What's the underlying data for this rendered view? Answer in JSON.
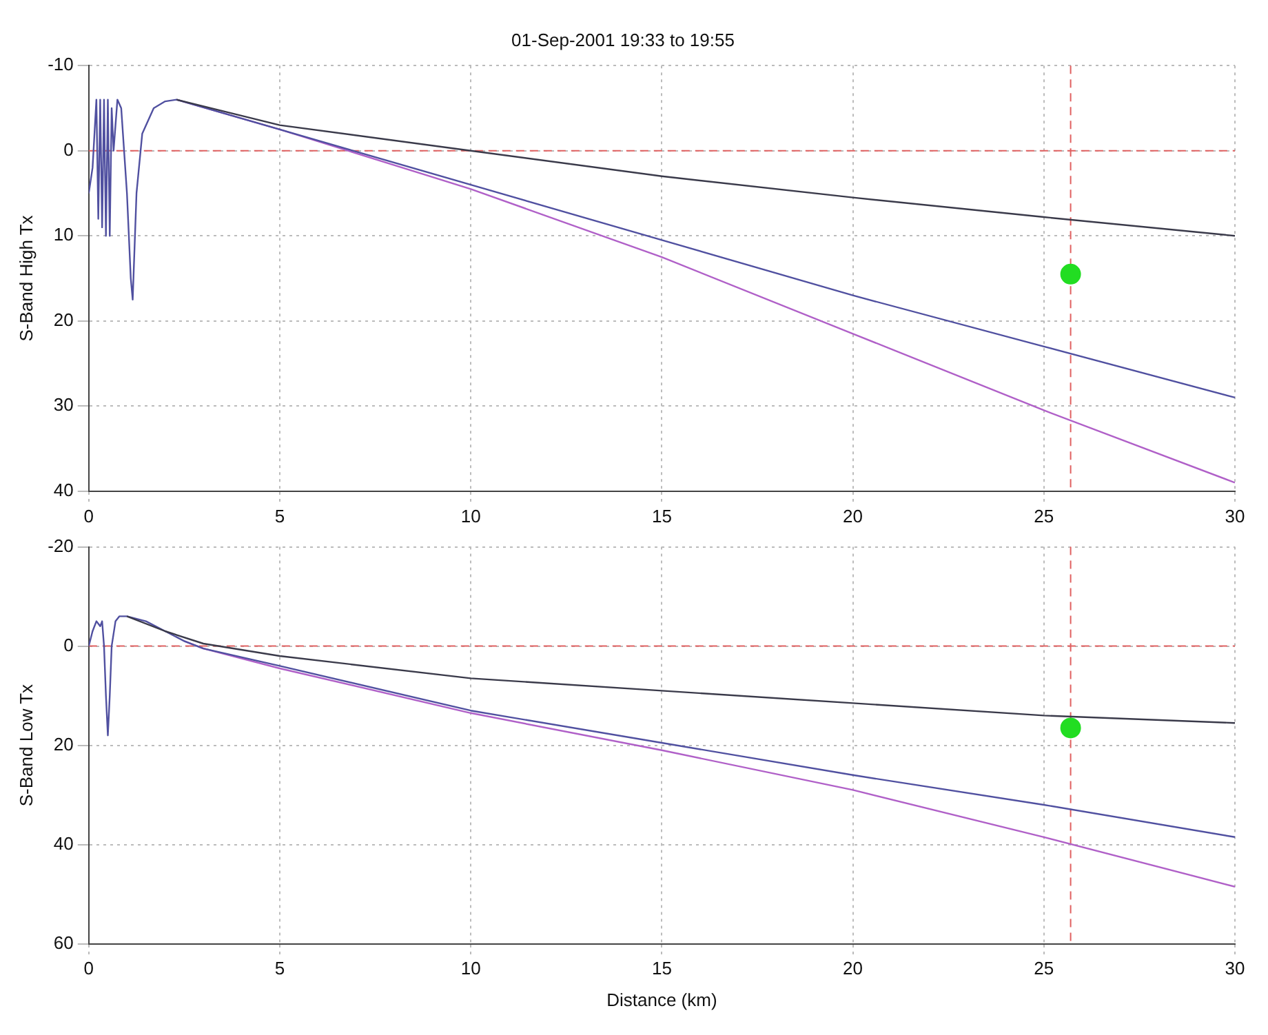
{
  "chart_data": [
    {
      "type": "line",
      "title": "01-Sep-2001 19:33 to 19:55",
      "ylabel": "S-Band High Tx",
      "xlim": [
        0,
        30
      ],
      "xticks": [
        0,
        5,
        10,
        15,
        20,
        25,
        30
      ],
      "ylim": [
        40,
        -10
      ],
      "yticks": [
        -10,
        0,
        10,
        20,
        30,
        40
      ],
      "grid": true,
      "legend": false,
      "marker": "none",
      "line_style": "solid",
      "ref_lines": [
        {
          "axis": "y",
          "value": 0,
          "color": "#e06060",
          "line_style": "dashed"
        },
        {
          "axis": "x",
          "value": 25.7,
          "color": "#e06060",
          "line_style": "dashed"
        }
      ],
      "series": [
        {
          "color": "#3a3a4a",
          "x": [
            2.3,
            5,
            10,
            15,
            20,
            25,
            30
          ],
          "values": [
            -6,
            -3,
            0,
            3,
            5.5,
            7.8,
            10
          ]
        },
        {
          "color": "#5050a0",
          "x": [
            0,
            0.1,
            0.2,
            0.25,
            0.3,
            0.35,
            0.4,
            0.45,
            0.5,
            0.55,
            0.6,
            0.65,
            0.75,
            0.85,
            1.0,
            1.1,
            1.15,
            1.25,
            1.4,
            1.7,
            2.0,
            2.3,
            5,
            10,
            15,
            20,
            25,
            30
          ],
          "values": [
            5,
            2,
            -6,
            8,
            -6,
            9,
            -6,
            10,
            -6,
            10,
            -5,
            0,
            -6,
            -5,
            5,
            15,
            17.5,
            5,
            -2,
            -5,
            -5.8,
            -6,
            -2.5,
            4,
            10.5,
            17,
            23,
            29
          ]
        },
        {
          "color": "#b060c8",
          "x": [
            2.3,
            5,
            10,
            15,
            20,
            25,
            30
          ],
          "values": [
            -6,
            -2.5,
            4.5,
            12.5,
            21.5,
            30.5,
            39
          ]
        },
        {
          "type": "scatter",
          "marker": "circle",
          "color": "#22dd22",
          "x": [
            25.7
          ],
          "values": [
            14.5
          ]
        }
      ]
    },
    {
      "type": "line",
      "ylabel": "S-Band Low Tx",
      "xlabel": "Distance (km)",
      "xlim": [
        0,
        30
      ],
      "xticks": [
        0,
        5,
        10,
        15,
        20,
        25,
        30
      ],
      "ylim": [
        60,
        -20
      ],
      "yticks": [
        -20,
        0,
        20,
        40,
        60
      ],
      "grid": true,
      "legend": false,
      "marker": "none",
      "line_style": "solid",
      "ref_lines": [
        {
          "axis": "y",
          "value": 0,
          "color": "#e06060",
          "line_style": "dashed"
        },
        {
          "axis": "x",
          "value": 25.7,
          "color": "#e06060",
          "line_style": "dashed"
        }
      ],
      "series": [
        {
          "color": "#3a3a4a",
          "x": [
            1,
            2,
            3,
            5,
            10,
            15,
            20,
            25,
            30
          ],
          "values": [
            -6,
            -3,
            -0.5,
            2,
            6.5,
            9,
            11.5,
            14,
            15.5
          ]
        },
        {
          "color": "#5050a0",
          "x": [
            0,
            0.1,
            0.2,
            0.3,
            0.35,
            0.4,
            0.45,
            0.5,
            0.55,
            0.6,
            0.7,
            0.8,
            1.0,
            1.5,
            2.0,
            2.5,
            3,
            5,
            10,
            15,
            20,
            25,
            30
          ],
          "values": [
            0,
            -3,
            -5,
            -4,
            -5,
            0,
            10,
            18,
            10,
            0,
            -5,
            -6,
            -6,
            -5,
            -3,
            -1,
            0.5,
            4,
            13,
            19.5,
            26,
            32,
            38.5
          ]
        },
        {
          "color": "#b060c8",
          "x": [
            2.5,
            3,
            5,
            10,
            15,
            20,
            25,
            30
          ],
          "values": [
            -1,
            0.5,
            4.5,
            13.5,
            21,
            29,
            38.5,
            48.5
          ]
        },
        {
          "type": "scatter",
          "marker": "circle",
          "color": "#22dd22",
          "x": [
            25.7
          ],
          "values": [
            16.5
          ]
        }
      ]
    }
  ]
}
